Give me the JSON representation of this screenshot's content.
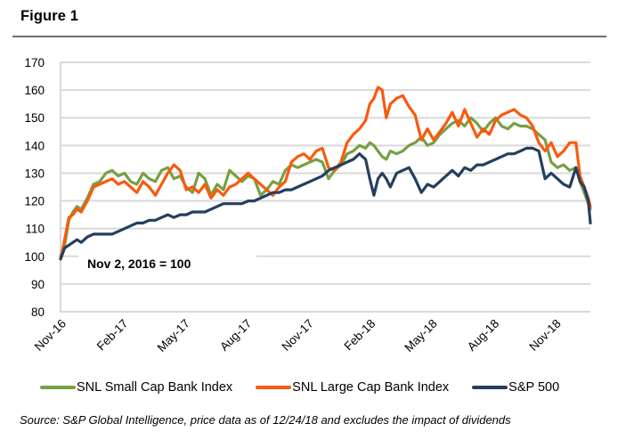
{
  "figure": {
    "title": "Figure 1",
    "source": "Source: S&P Global Intelligence, price data as of 12/24/18 and excludes the impact of dividends"
  },
  "chart_data": {
    "type": "line",
    "title": "Figure 1",
    "xlabel": "",
    "ylabel": "",
    "annotation": "Nov 2, 2016  = 100",
    "ylim": [
      80,
      170
    ],
    "yticks": [
      170,
      160,
      150,
      140,
      130,
      120,
      110,
      100,
      90,
      80
    ],
    "xlim_months_since_nov_2016": [
      0,
      25.7
    ],
    "xticks": [
      {
        "label": "Nov-16",
        "month": 0
      },
      {
        "label": "Feb-17",
        "month": 3
      },
      {
        "label": "May-17",
        "month": 6
      },
      {
        "label": "Aug-17",
        "month": 9
      },
      {
        "label": "Nov-17",
        "month": 12
      },
      {
        "label": "Feb-18",
        "month": 15
      },
      {
        "label": "May-18",
        "month": 18
      },
      {
        "label": "Aug-18",
        "month": 21
      },
      {
        "label": "Nov-18",
        "month": 24
      }
    ],
    "grid": true,
    "legend_position": "bottom",
    "x_months": [
      0,
      0.2,
      0.4,
      0.6,
      0.8,
      1.0,
      1.3,
      1.6,
      1.9,
      2.2,
      2.5,
      2.8,
      3.1,
      3.4,
      3.7,
      4.0,
      4.3,
      4.6,
      4.9,
      5.2,
      5.5,
      5.8,
      6.1,
      6.4,
      6.7,
      7.0,
      7.3,
      7.6,
      7.9,
      8.2,
      8.5,
      8.8,
      9.1,
      9.4,
      9.7,
      10.0,
      10.3,
      10.6,
      10.9,
      11.2,
      11.5,
      11.8,
      12.1,
      12.4,
      12.7,
      13.0,
      13.3,
      13.6,
      13.9,
      14.2,
      14.5,
      14.8,
      15.0,
      15.2,
      15.4,
      15.6,
      15.8,
      16.0,
      16.3,
      16.6,
      16.9,
      17.2,
      17.5,
      17.8,
      18.1,
      18.4,
      18.7,
      19.0,
      19.3,
      19.6,
      19.9,
      20.2,
      20.5,
      20.8,
      21.1,
      21.4,
      21.7,
      22.0,
      22.3,
      22.6,
      22.9,
      23.2,
      23.5,
      23.8,
      24.1,
      24.4,
      24.7,
      25.0,
      25.2,
      25.4,
      25.6,
      25.7
    ],
    "series": [
      {
        "name": "SNL Small Cap Bank Index",
        "color": "#77a043",
        "values": [
          100,
          104,
          113,
          116,
          118,
          117,
          121,
          126,
          127,
          130,
          131,
          129,
          130,
          127,
          126,
          130,
          128,
          127,
          131,
          132,
          128,
          129,
          125,
          123,
          130,
          128,
          122,
          126,
          124,
          131,
          129,
          127,
          129,
          128,
          122,
          124,
          127,
          126,
          131,
          133,
          132,
          133,
          134,
          135,
          134,
          128,
          131,
          133,
          137,
          138,
          140,
          139,
          141,
          140,
          138,
          136,
          135,
          138,
          137,
          138,
          140,
          141,
          143,
          140,
          141,
          144,
          146,
          148,
          149,
          147,
          150,
          148,
          145,
          148,
          150,
          147,
          146,
          148,
          147,
          147,
          146,
          144,
          142,
          134,
          132,
          133,
          131,
          132,
          127,
          123,
          119,
          117
        ]
      },
      {
        "name": "SNL Large Cap Bank Index",
        "color": "#f95a0e",
        "values": [
          99,
          106,
          114,
          115,
          117,
          116,
          120,
          125,
          126,
          127,
          128,
          126,
          127,
          125,
          123,
          127,
          125,
          122,
          126,
          130,
          133,
          131,
          124,
          125,
          123,
          126,
          121,
          124,
          122,
          125,
          126,
          128,
          130,
          128,
          126,
          124,
          122,
          125,
          127,
          134,
          136,
          137,
          135,
          138,
          139,
          132,
          131,
          134,
          141,
          144,
          146,
          149,
          155,
          157,
          161,
          160,
          150,
          155,
          157,
          158,
          154,
          151,
          142,
          146,
          142,
          145,
          148,
          152,
          147,
          153,
          148,
          143,
          146,
          144,
          149,
          151,
          152,
          153,
          151,
          150,
          147,
          141,
          138,
          141,
          136,
          138,
          141,
          141,
          129,
          125,
          121,
          118
        ]
      },
      {
        "name": "S&P 500",
        "color": "#253f5e",
        "values": [
          99,
          103,
          104,
          105,
          106,
          105,
          107,
          108,
          108,
          108,
          108,
          109,
          110,
          111,
          112,
          112,
          113,
          113,
          114,
          115,
          114,
          115,
          115,
          116,
          116,
          116,
          117,
          118,
          119,
          119,
          119,
          119,
          120,
          120,
          121,
          122,
          123,
          123,
          124,
          124,
          125,
          126,
          127,
          128,
          129,
          131,
          132,
          133,
          134,
          135,
          137,
          135,
          128,
          122,
          128,
          130,
          128,
          125,
          130,
          131,
          132,
          128,
          123,
          126,
          125,
          127,
          129,
          131,
          129,
          132,
          131,
          133,
          133,
          134,
          135,
          136,
          137,
          137,
          138,
          139,
          139,
          138,
          128,
          130,
          128,
          126,
          125,
          132,
          127,
          125,
          120,
          112
        ]
      }
    ]
  }
}
